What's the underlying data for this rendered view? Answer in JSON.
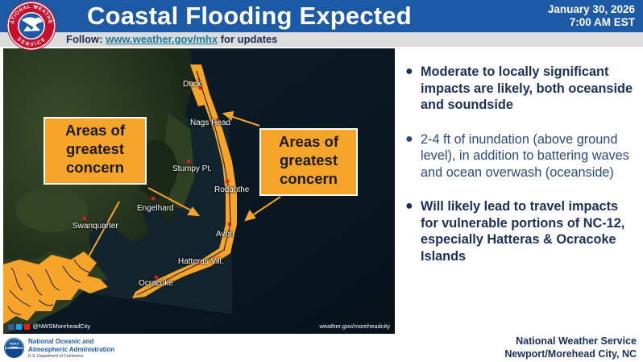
{
  "header": {
    "title": "Coastal Flooding Expected",
    "date": "January 30, 2026",
    "time": "7:00 AM EST",
    "seal_text_top": "NATIONAL WEATHER",
    "seal_text_bottom": "SERVICE"
  },
  "follow": {
    "label": "Follow:",
    "link": "www.weather.gov/mhx",
    "suffix": "for updates"
  },
  "map": {
    "towns": {
      "duck": "Duck",
      "nags_head": "Nags Head",
      "stumpy_pt": "Stumpy Pt.",
      "rodanthe": "Rodanthe",
      "engelhard": "Engelhard",
      "swanquarter": "Swanquarter",
      "avon": "Avon",
      "hatteras": "Hatteras Vill.",
      "ocracoke": "Ocracoke"
    },
    "callout_left": "Areas of greatest concern",
    "callout_right": "Areas of greatest concern",
    "social_handle": "@NWSMoreheadCity",
    "website": "weather.gov/moreheadcity",
    "impact_color": "#f6a42a"
  },
  "bullets": [
    {
      "text": "Moderate to locally significant impacts are likely, both oceanside and soundside"
    },
    {
      "text": "2-4 ft of inundation (above ground level), in addition to battering waves and ocean overwash (oceanside)"
    },
    {
      "text": "Will likely lead to travel impacts for vulnerable portions of NC-12, especially Hatteras & Ocracoke Islands"
    }
  ],
  "footer": {
    "noaa_line1": "National Oceanic and",
    "noaa_line2": "Atmospheric Administration",
    "noaa_line3": "U.S. Department of Commerce",
    "noaa_logo_text": "NOAA",
    "office_line1": "National Weather Service",
    "office_line2": "Newport/Morehead City, NC"
  },
  "colors": {
    "header_bg": "#1d5aa5",
    "text_navy": "#1b2f5b",
    "callout_orange": "#f6a42a"
  }
}
